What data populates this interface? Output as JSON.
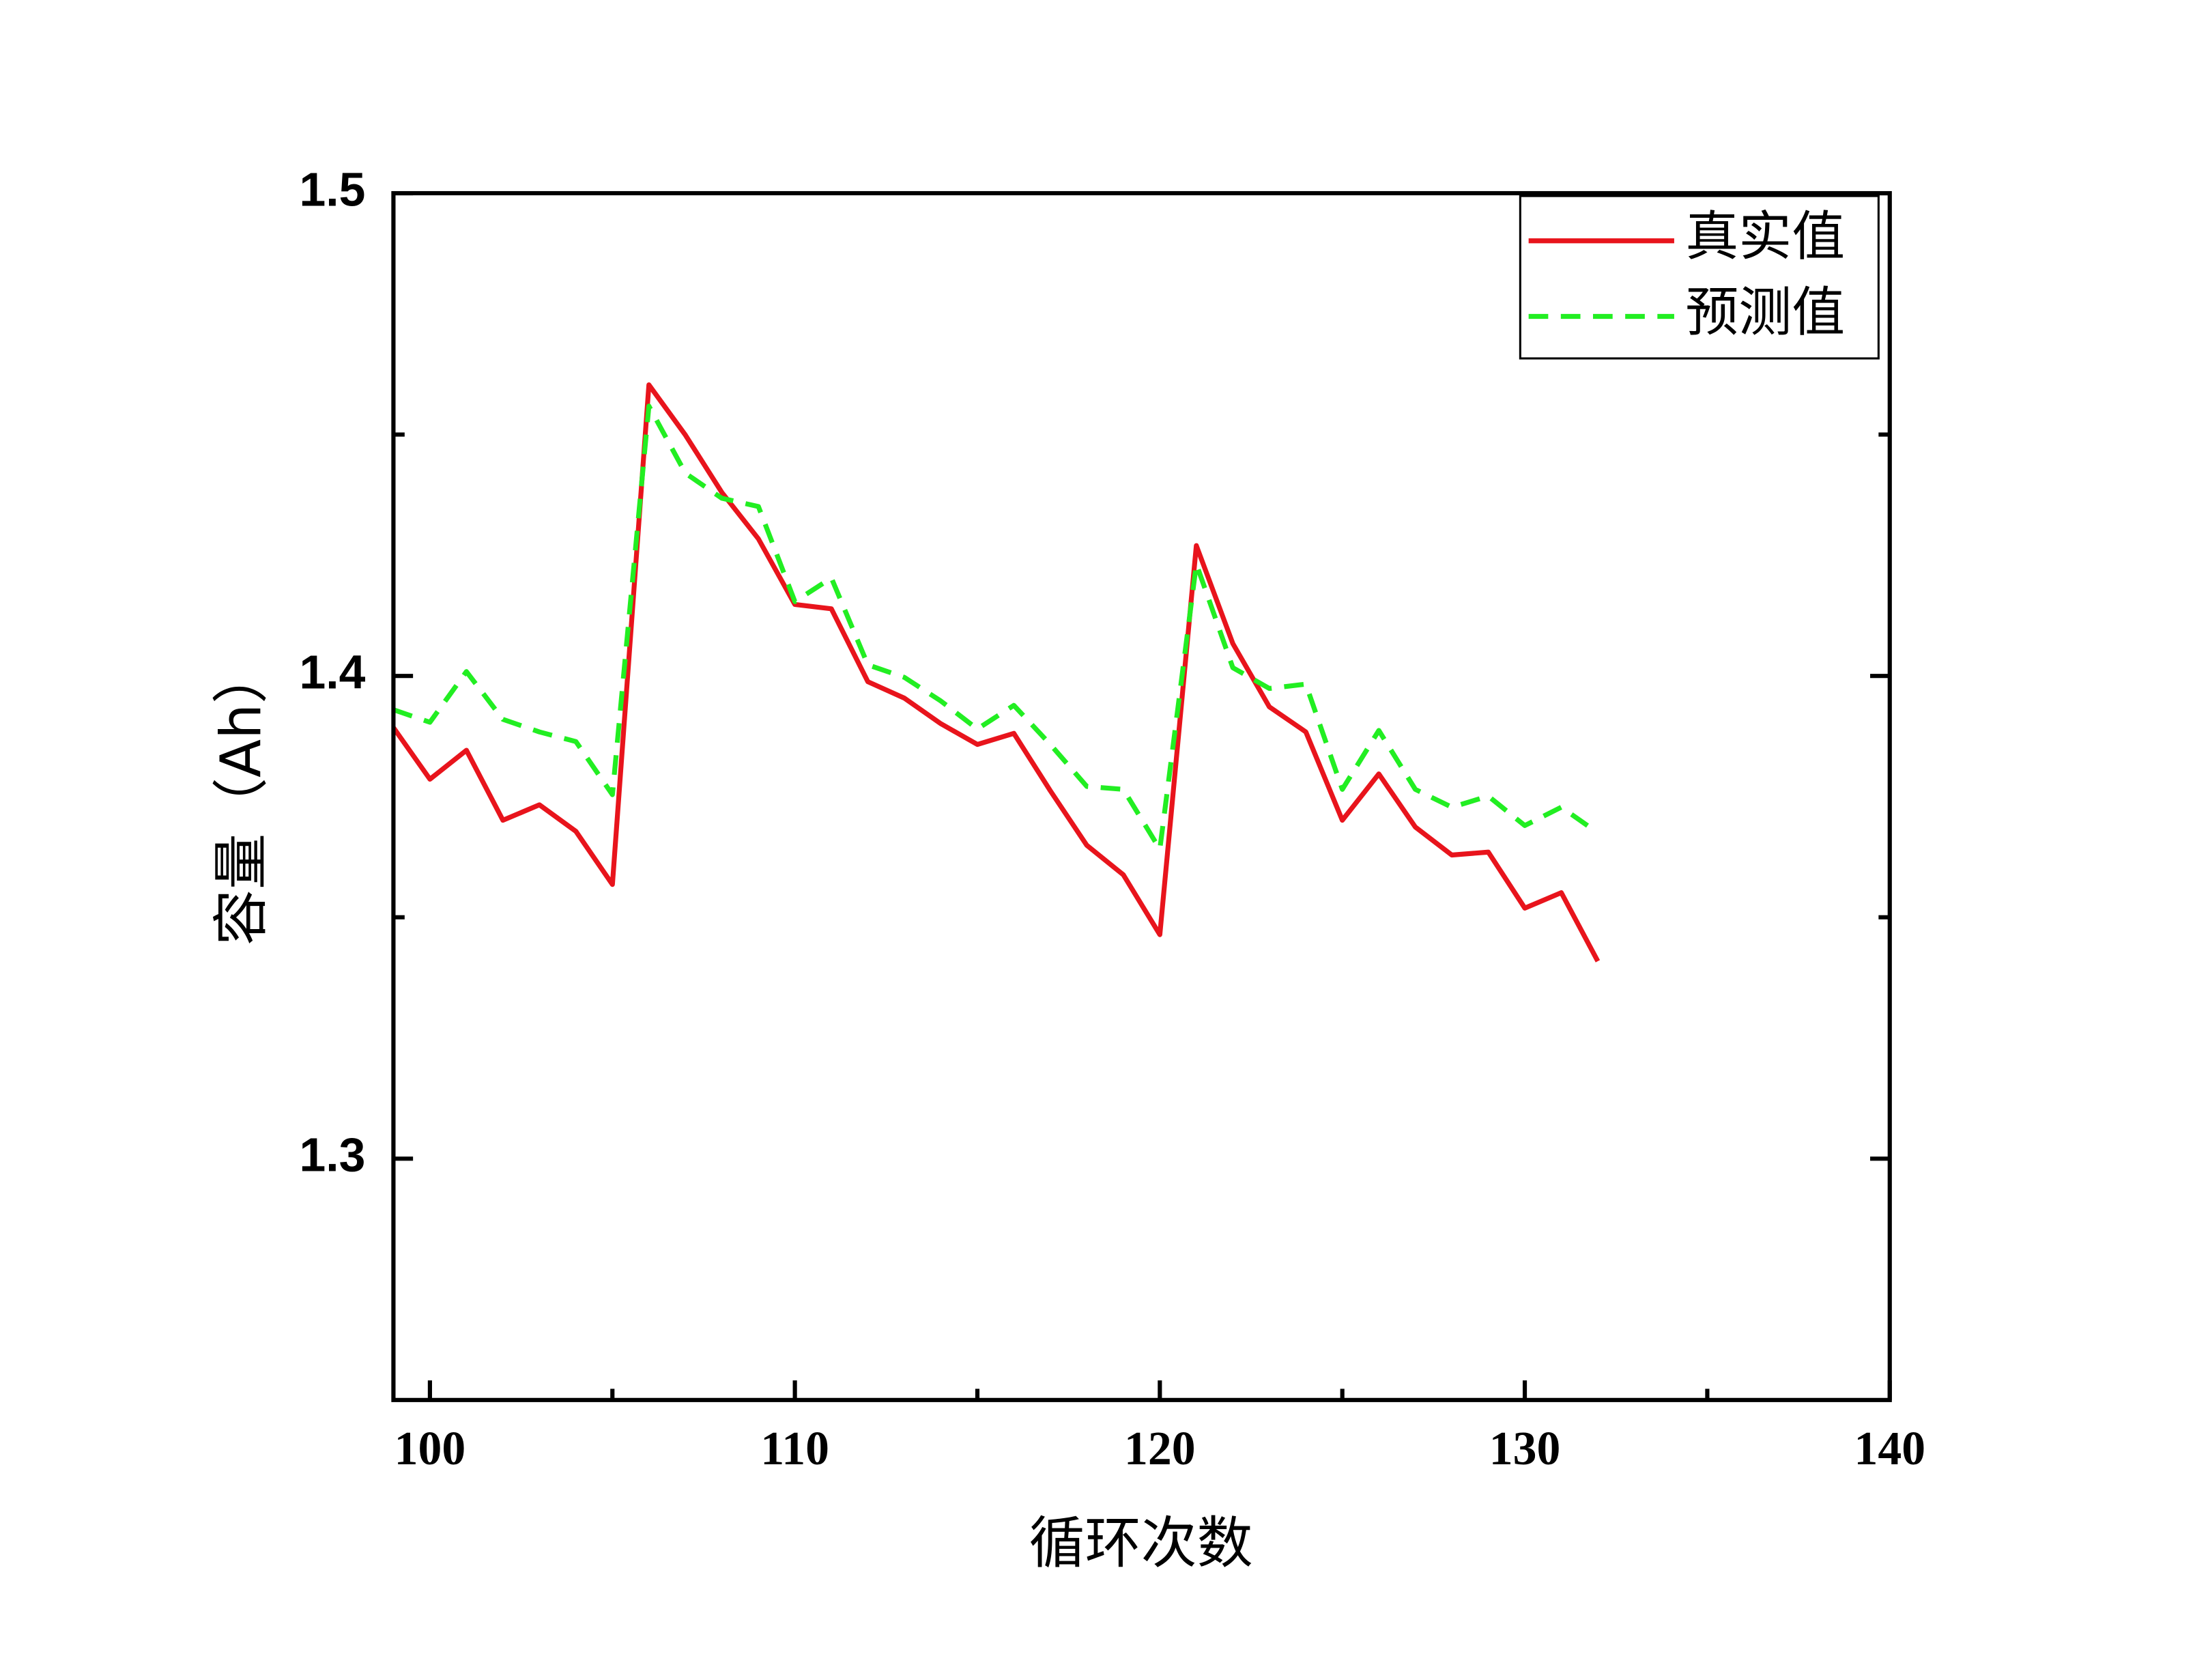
{
  "chart_data": {
    "type": "line",
    "x_label": "循环次数",
    "y_label": "容量（Ah）",
    "x": [
      99,
      100,
      101,
      102,
      103,
      104,
      105,
      106,
      107,
      108,
      109,
      110,
      111,
      112,
      113,
      114,
      115,
      116,
      117,
      118,
      119,
      120,
      121,
      122,
      123,
      124,
      125,
      126,
      127,
      128,
      129,
      130,
      131,
      132
    ],
    "series": [
      {
        "name": "真实值",
        "color": "#e8141c",
        "dash": "solid",
        "values": [
          1.3893,
          1.3786,
          1.3846,
          1.3701,
          1.3733,
          1.3678,
          1.3568,
          1.4603,
          1.4499,
          1.438,
          1.4284,
          1.4148,
          1.4139,
          1.3988,
          1.3954,
          1.3901,
          1.3858,
          1.3881,
          1.3762,
          1.3649,
          1.3588,
          1.3464,
          1.427,
          1.4067,
          1.3936,
          1.3884,
          1.3701,
          1.3797,
          1.3687,
          1.3629,
          1.3635,
          1.3519,
          1.3551,
          1.3409
        ]
      },
      {
        "name": "预测值",
        "color": "#22ee22",
        "dash": "dashed",
        "values": [
          1.393,
          1.3904,
          1.4009,
          1.391,
          1.3884,
          1.3864,
          1.3754,
          1.4559,
          1.442,
          1.4368,
          1.4351,
          1.4154,
          1.4203,
          1.4023,
          1.3997,
          1.3948,
          1.389,
          1.3939,
          1.3858,
          1.3771,
          1.3765,
          1.3641,
          1.4232,
          1.4017,
          1.3974,
          1.3983,
          1.3765,
          1.3887,
          1.3765,
          1.3728,
          1.3751,
          1.369,
          1.3728,
          1.3675
        ]
      }
    ],
    "xlim": [
      99,
      140
    ],
    "xticks": [
      100,
      110,
      120,
      130,
      140
    ],
    "xminorticks": [
      105,
      115,
      125,
      135
    ],
    "ylim": [
      1.25,
      1.5
    ],
    "yticks": [
      1.3,
      1.4,
      1.5
    ],
    "yminorticks": [
      1.35,
      1.45
    ],
    "legend": "upper-right"
  }
}
